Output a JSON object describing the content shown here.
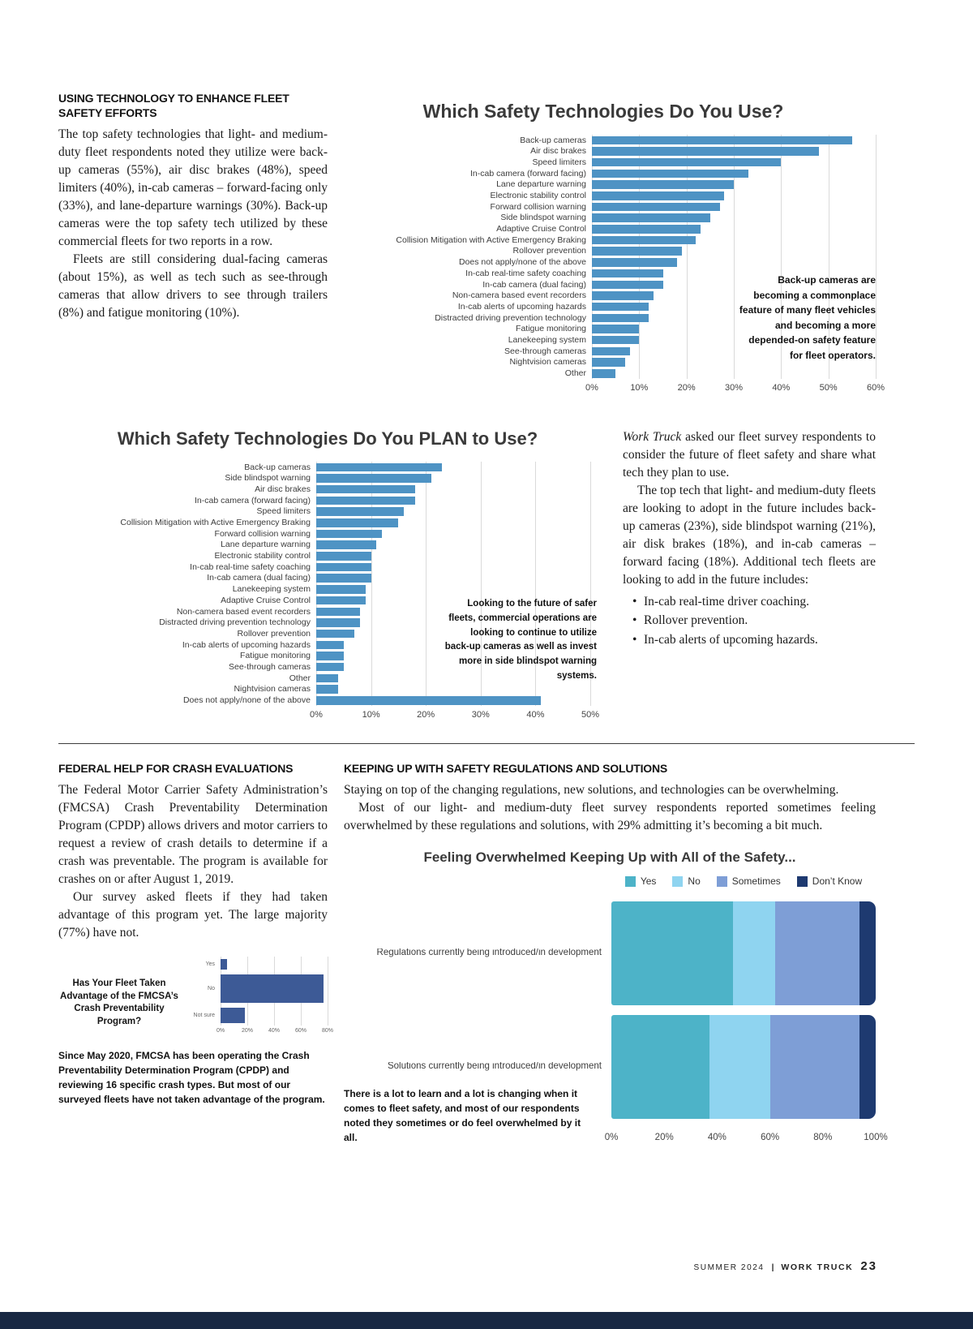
{
  "sections": {
    "tech": {
      "heading": "USING TECHNOLOGY TO ENHANCE FLEET SAFETY EFFORTS",
      "para1": "The top safety technologies that light- and medium-duty fleet respondents noted they utilize were back-up cameras (55%), air disc brakes (48%), speed limiters (40%), in-cab cameras – forward-facing only (33%), and lane-departure warnings (30%). Back-up cameras were the top safety tech utilized by these commercial fleets for two reports in a row.",
      "para2": "Fleets are still considering dual-facing cameras (about 15%), as well as tech such as see-through cameras that allow drivers to see through trailers (8%) and fatigue monitoring (10%)."
    },
    "plan": {
      "para1_italic": "Work Truck",
      "para1_rest": " asked our fleet survey respondents to consider the future of fleet safety and share what tech they plan to use.",
      "para2": "The top tech that light- and medium-duty fleets are looking to adopt in the future includes back-up cameras (23%), side blindspot warning (21%), air disk brakes (18%), and in-cab cameras – forward facing (18%). Additional tech fleets are looking to add in the future includes:",
      "bullets": [
        "In-cab real-time driver coaching.",
        "Rollover prevention.",
        "In-cab alerts of upcoming hazards."
      ]
    },
    "federal": {
      "heading": "FEDERAL HELP FOR CRASH EVALUATIONS",
      "para1": "The Federal Motor Carrier Safety Administration’s (FMCSA) Crash Preventability Determination Program (CPDP) allows drivers and motor carriers to request a review of crash details to determine if a crash was preventable. The program is available for crashes on or after August 1, 2019.",
      "para2": "Our survey asked fleets if they had taken advantage of this program yet. The large majority (77%) have not.",
      "caption": "Since May 2020, FMCSA has been operating the Crash Preventability Determination Program (CPDP) and reviewing 16 specific crash types. But most of our surveyed fleets have not taken advantage of the program."
    },
    "keeping": {
      "heading": "KEEPING UP WITH SAFETY REGULATIONS AND SOLUTIONS",
      "para1": "Staying on top of the changing regulations, new solutions, and technologies can be overwhelming.",
      "para2": "Most of our light- and medium-duty fleet survey respondents reported sometimes feeling overwhelmed by these regulations and solutions, with 29% admitting it’s becoming a bit much.",
      "caption": "There is a lot to learn and a lot is changing when it comes to fleet safety, and most of our respondents noted they sometimes or do feel overwhelmed by it all."
    }
  },
  "footer": {
    "issue": "SUMMER 2024",
    "sep": "|",
    "magazine": "WORK TRUCK",
    "page_number": "23"
  },
  "chart_data": [
    {
      "id": "safety-tech-use",
      "type": "bar",
      "orientation": "horizontal",
      "title": "Which Safety Technologies Do You Use?",
      "categories": [
        "Back-up cameras",
        "Air disc brakes",
        "Speed limiters",
        "In-cab camera (forward facing)",
        "Lane departure warning",
        "Electronic stability control",
        "Forward collision warning",
        "Side blindspot warning",
        "Adaptive Cruise Control",
        "Collision Mitigation with Active Emergency Braking",
        "Rollover prevention",
        "Does not apply/none of the above",
        "In-cab real-time safety coaching",
        "In-cab camera (dual facing)",
        "Non-camera based event recorders",
        "In-cab alerts of upcoming hazards",
        "Distracted driving prevention technology",
        "Fatigue monitoring",
        "Lanekeeping system",
        "See-through cameras",
        "Nightvision cameras",
        "Other"
      ],
      "values": [
        55,
        48,
        40,
        33,
        30,
        28,
        27,
        25,
        23,
        22,
        19,
        18,
        15,
        15,
        13,
        12,
        12,
        10,
        10,
        8,
        7,
        5
      ],
      "xlim": [
        0,
        60
      ],
      "xticks": [
        "0%",
        "10%",
        "20%",
        "30%",
        "40%",
        "50%",
        "60%"
      ],
      "bar_color": "#4e93c4",
      "grid": true,
      "legend": "none",
      "annotation": "Back-up cameras are becoming a commonplace feature of many fleet vehicles and becoming a more depended-on safety feature for fleet operators."
    },
    {
      "id": "safety-tech-plan",
      "type": "bar",
      "orientation": "horizontal",
      "title": "Which Safety Technologies Do You PLAN to Use?",
      "categories": [
        "Back-up cameras",
        "Side blindspot warning",
        "Air disc brakes",
        "In-cab camera (forward facing)",
        "Speed limiters",
        "Collision Mitigation with Active Emergency Braking",
        "Forward collision warning",
        "Lane departure warning",
        "Electronic stability control",
        "In-cab real-time safety coaching",
        "In-cab camera (dual facing)",
        "Lanekeeping system",
        "Adaptive Cruise Control",
        "Non-camera based event recorders",
        "Distracted driving prevention technology",
        "Rollover prevention",
        "In-cab alerts of upcoming hazards",
        "Fatigue monitoring",
        "See-through cameras",
        "Other",
        "Nightvision cameras",
        "Does not apply/none of the above"
      ],
      "values": [
        23,
        21,
        18,
        18,
        16,
        15,
        12,
        11,
        10,
        10,
        10,
        9,
        9,
        8,
        8,
        7,
        5,
        5,
        5,
        4,
        4,
        41
      ],
      "xlim": [
        0,
        50
      ],
      "xticks": [
        "0%",
        "10%",
        "20%",
        "30%",
        "40%",
        "50%"
      ],
      "bar_color": "#4e93c4",
      "grid": true,
      "legend": "none",
      "annotation": "Looking to the future of safer fleets, commercial operations are looking to continue to utilize back-up cameras as well as invest more in side blindspot warning systems."
    },
    {
      "id": "fmcsa-cpdp",
      "type": "bar",
      "orientation": "horizontal",
      "title": "Has Your Fleet Taken Advantage of the FMCSA’s Crash Preventability Program?",
      "categories": [
        "Yes",
        "No",
        "Not sure"
      ],
      "values": [
        5,
        77,
        18
      ],
      "xlim": [
        0,
        80
      ],
      "xticks": [
        "0%",
        "20%",
        "40%",
        "60%",
        "80%"
      ],
      "bar_color": "#3d5a96",
      "grid": true,
      "legend": "none"
    },
    {
      "id": "feeling-overwhelmed",
      "type": "bar-stacked",
      "title": "Feeling Overwhelmed Keeping Up with All of the Safety...",
      "categories": [
        "Regulations currently being introduced/in development",
        "Solutions currently being introduced/in development"
      ],
      "series": [
        {
          "name": "Yes",
          "color": "#4db3c8",
          "values": [
            46,
            37
          ]
        },
        {
          "name": "No",
          "color": "#8fd4f0",
          "values": [
            16,
            23
          ]
        },
        {
          "name": "Sometimes",
          "color": "#7e9ed6",
          "values": [
            32,
            34
          ]
        },
        {
          "name": "Don’t Know",
          "color": "#1e3a70",
          "values": [
            6,
            6
          ]
        }
      ],
      "xlim": [
        0,
        100
      ],
      "xticks": [
        "0%",
        "20%",
        "40%",
        "60%",
        "80%",
        "100%"
      ],
      "legend_position": "top",
      "grid": false
    }
  ]
}
